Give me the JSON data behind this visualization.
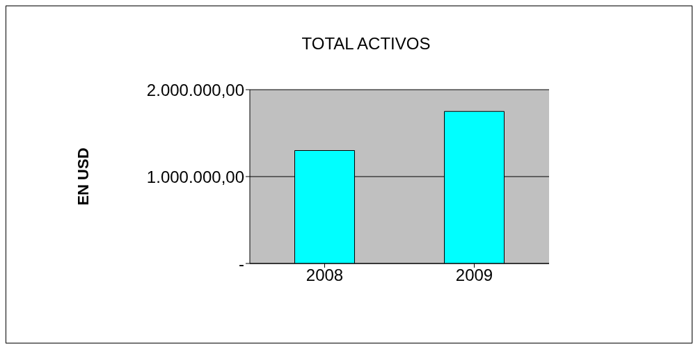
{
  "chart_data": {
    "type": "bar",
    "title": "TOTAL ACTIVOS",
    "ylabel": "EN USD",
    "categories": [
      "2008",
      "2009"
    ],
    "series": [
      {
        "color": "#00ffff",
        "values": [
          1300000,
          1750000
        ]
      }
    ],
    "ylim": [
      0,
      2000000
    ],
    "yticks": [
      {
        "value": 0,
        "label": "-"
      },
      {
        "value": 1000000,
        "label": "1.000.000,00"
      },
      {
        "value": 2000000,
        "label": "2.000.000,00"
      }
    ],
    "grid": "y"
  }
}
